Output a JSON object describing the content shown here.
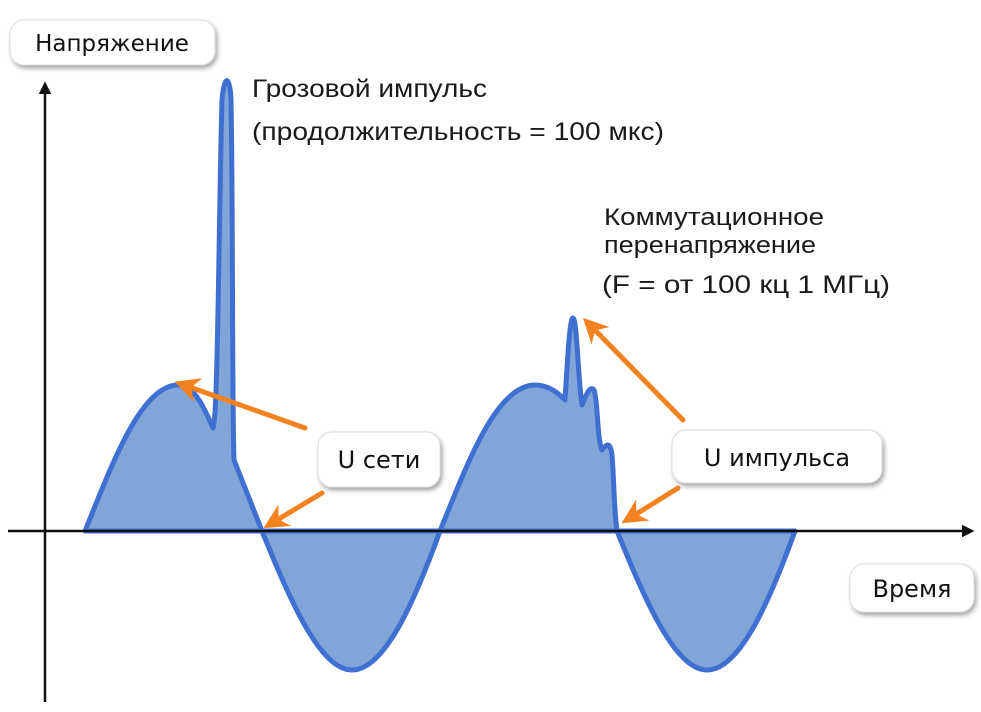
{
  "axes": {
    "y_label": "Напряжение",
    "x_label": "Время"
  },
  "annotations": {
    "lightning_title": "Грозовой импульс",
    "lightning_detail": "(продолжительность = 100 мкс)",
    "switching_line1": "Коммутационное",
    "switching_line2": "перенапряжение",
    "switching_line3": "(F = от 100 кц  1 МГц)"
  },
  "callouts": {
    "mains": "U сети",
    "impulse": "U импульса"
  },
  "colors": {
    "wave_fill": "#7fa6d6",
    "wave_stroke": "#3f6fd0",
    "arrow": "#f58220",
    "axis": "#111111"
  }
}
